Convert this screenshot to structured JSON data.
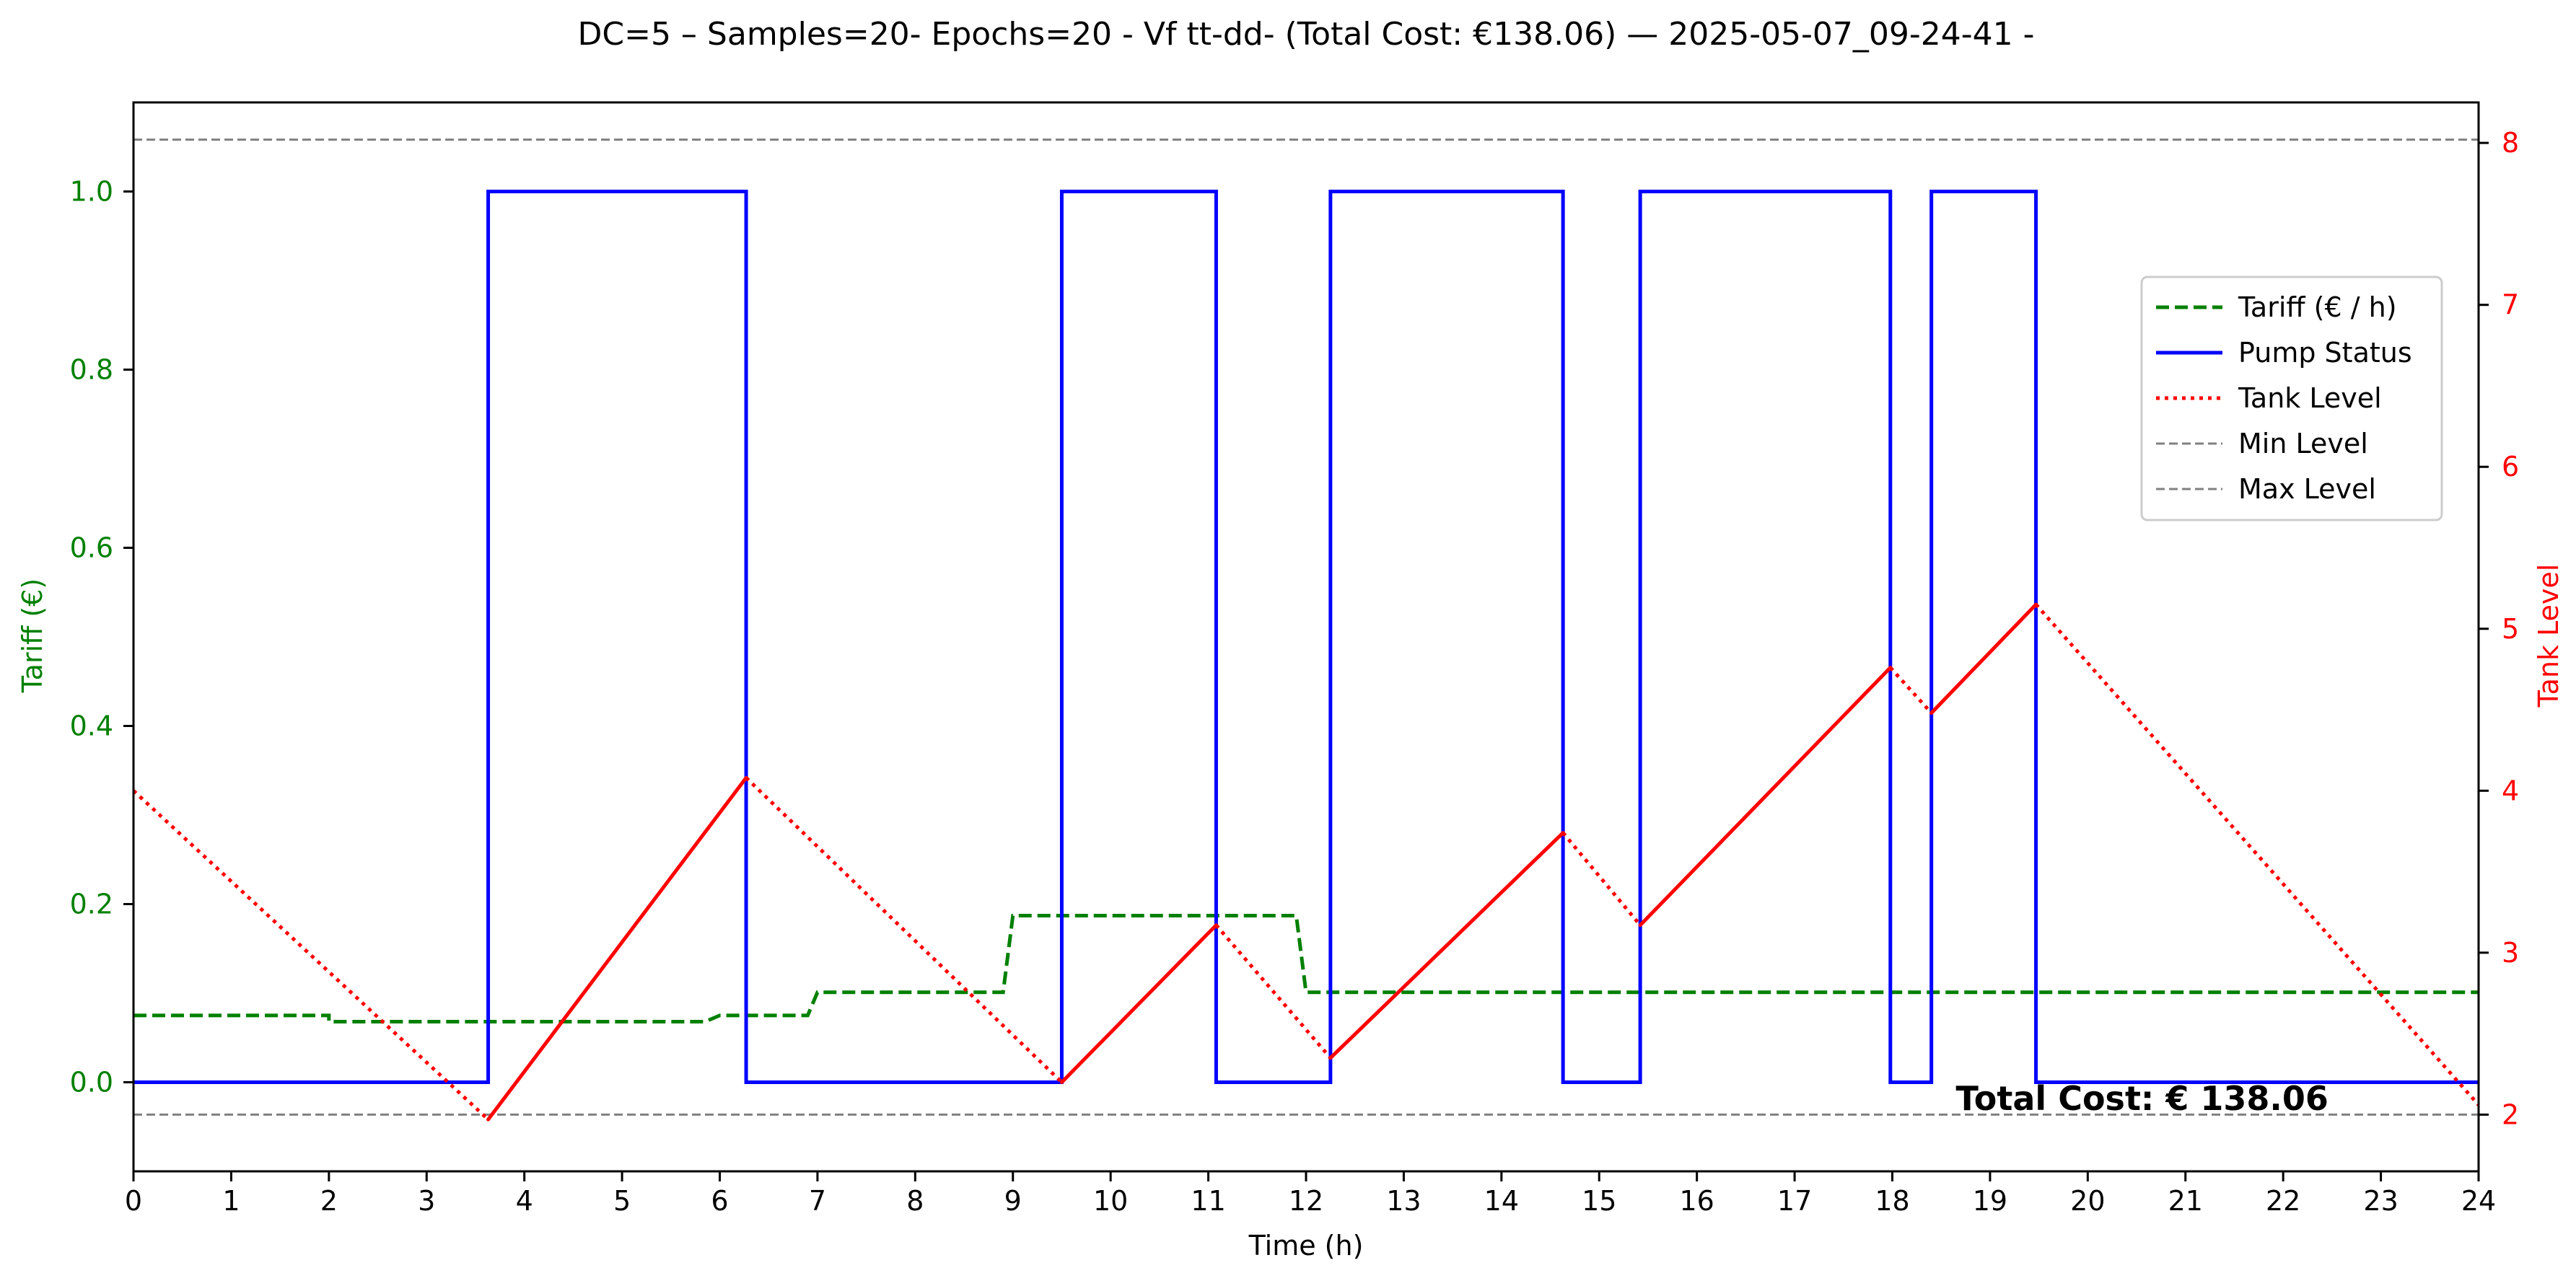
{
  "chart_data": {
    "type": "line",
    "title": "DC=5 – Samples=20- Epochs=20 - Vf tt-dd- (Total Cost: €138.06) — 2025-05-07_09-24-41 -",
    "xlabel": "Time (h)",
    "ylabel_left": "Tariff (€)",
    "ylabel_right": "Tank Level",
    "xlim": [
      0,
      24
    ],
    "ylim_left": [
      -0.1,
      1.1
    ],
    "ylim_right": [
      1.65,
      8.25
    ],
    "x_ticks": [
      0,
      1,
      2,
      3,
      4,
      5,
      6,
      7,
      8,
      9,
      10,
      11,
      12,
      13,
      14,
      15,
      16,
      17,
      18,
      19,
      20,
      21,
      22,
      23,
      24
    ],
    "y_ticks_left": [
      0.0,
      0.2,
      0.4,
      0.6,
      0.8,
      1.0
    ],
    "y_ticks_right": [
      2,
      3,
      4,
      5,
      6,
      7,
      8
    ],
    "grid": false,
    "legend_position": "upper-right",
    "colors": {
      "tariff": "#008000",
      "pump": "#0000ff",
      "tank": "#ff0000",
      "limits": "#808080",
      "left_axis": "#008000",
      "right_axis": "#ff0000"
    },
    "legend": [
      {
        "label": "Tariff (€ / h)",
        "style": "dashed",
        "color": "#008000"
      },
      {
        "label": "Pump Status",
        "style": "solid",
        "color": "#0000ff"
      },
      {
        "label": "Tank Level",
        "style": "dotted",
        "color": "#ff0000"
      },
      {
        "label": "Min Level",
        "style": "dashed-thin",
        "color": "#808080"
      },
      {
        "label": "Max Level",
        "style": "dashed-thin",
        "color": "#808080"
      }
    ],
    "series": [
      {
        "name": "Tariff (€ / h)",
        "axis": "left",
        "points": [
          [
            0,
            0.075
          ],
          [
            2,
            0.075
          ],
          [
            2,
            0.068
          ],
          [
            5.85,
            0.068
          ],
          [
            6,
            0.075
          ],
          [
            6.9,
            0.075
          ],
          [
            7,
            0.101
          ],
          [
            8.9,
            0.101
          ],
          [
            9,
            0.187
          ],
          [
            11.9,
            0.187
          ],
          [
            12,
            0.101
          ],
          [
            24,
            0.101
          ]
        ]
      },
      {
        "name": "Pump Status",
        "axis": "left",
        "points": [
          [
            0,
            0
          ],
          [
            3.63,
            0
          ],
          [
            3.63,
            1
          ],
          [
            6.27,
            1
          ],
          [
            6.27,
            0
          ],
          [
            9.5,
            0
          ],
          [
            9.5,
            1
          ],
          [
            11.08,
            1
          ],
          [
            11.08,
            0
          ],
          [
            12.25,
            0
          ],
          [
            12.25,
            1
          ],
          [
            14.63,
            1
          ],
          [
            14.63,
            0
          ],
          [
            15.42,
            0
          ],
          [
            15.42,
            1
          ],
          [
            17.98,
            1
          ],
          [
            17.98,
            0
          ],
          [
            18.4,
            0
          ],
          [
            18.4,
            1
          ],
          [
            19.47,
            1
          ],
          [
            19.47,
            0
          ],
          [
            24,
            0
          ]
        ]
      },
      {
        "name": "Tank Level",
        "axis": "right",
        "points": [
          [
            0,
            4.0
          ],
          [
            3.63,
            1.97
          ],
          [
            6.27,
            4.08
          ],
          [
            9.5,
            2.2
          ],
          [
            11.08,
            3.17
          ],
          [
            12.25,
            2.35
          ],
          [
            14.63,
            3.74
          ],
          [
            15.42,
            3.17
          ],
          [
            17.98,
            4.76
          ],
          [
            18.4,
            4.48
          ],
          [
            19.47,
            5.15
          ],
          [
            24,
            2.06
          ]
        ],
        "pump_on_segments": [
          false,
          true,
          false,
          true,
          false,
          true,
          false,
          true,
          false,
          true,
          false
        ]
      }
    ],
    "min_level": 2.0,
    "max_level": 8.02,
    "annotation": {
      "text": "Total Cost: € 138.06",
      "x": 18.65,
      "y": 2.1
    }
  }
}
